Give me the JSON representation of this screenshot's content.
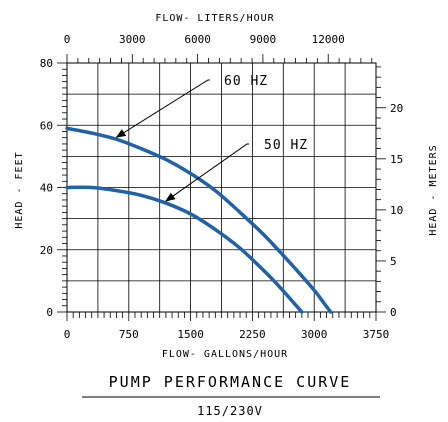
{
  "chart_data": {
    "type": "line",
    "title": "PUMP PERFORMANCE CURVE",
    "subtitle": "115/230V",
    "xlabel": "FLOW- GALLONS/HOUR",
    "ylabel": "HEAD - FEET",
    "x2label": "FLOW- LITERS/HOUR",
    "y2label": "HEAD - METERS",
    "xlim": [
      0,
      3750
    ],
    "ylim": [
      0,
      80
    ],
    "x_ticks": [
      0,
      750,
      1500,
      2250,
      3000,
      3750
    ],
    "y_ticks": [
      0,
      20,
      40,
      60,
      80
    ],
    "x2_ticks": [
      0,
      3000,
      6000,
      9000,
      12000
    ],
    "y2_ticks": [
      0,
      5,
      10,
      15,
      20
    ],
    "grid": true,
    "series": [
      {
        "name": "60 HZ",
        "x": [
          0,
          300,
          600,
          900,
          1200,
          1500,
          1800,
          2100,
          2400,
          2700,
          3000,
          3100,
          3200
        ],
        "y": [
          59,
          57.5,
          55.5,
          52.5,
          49,
          44.5,
          39,
          32,
          24.5,
          16,
          7,
          3.5,
          0
        ]
      },
      {
        "name": "50 HZ",
        "x": [
          0,
          300,
          600,
          900,
          1200,
          1500,
          1800,
          2100,
          2400,
          2600,
          2750,
          2850
        ],
        "y": [
          40,
          40,
          39,
          37.5,
          35,
          31.5,
          26.5,
          20.5,
          13,
          7.5,
          3,
          0
        ]
      }
    ],
    "annotations": [
      {
        "text": "60 HZ",
        "target_series": "60 HZ"
      },
      {
        "text": "50 HZ",
        "target_series": "50 HZ"
      }
    ],
    "colors": {
      "curve": "#1f62a8",
      "grid": "#000000"
    }
  }
}
